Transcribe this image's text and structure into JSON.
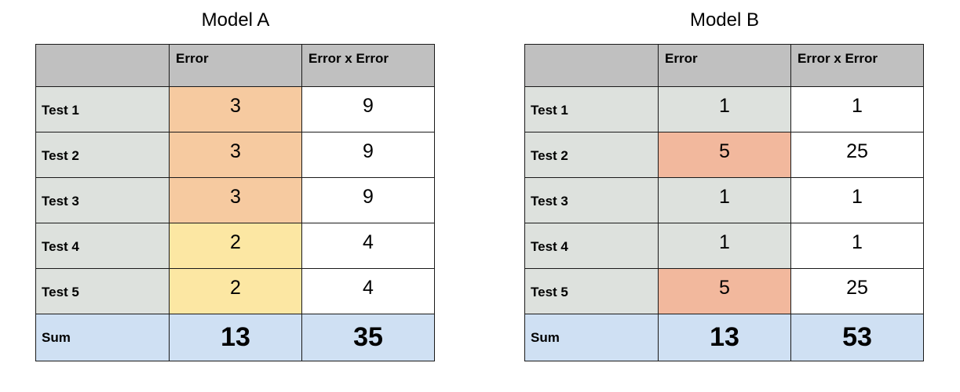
{
  "model_a": {
    "title": "Model A",
    "headers": [
      "",
      "Error",
      "Error x Error"
    ],
    "rows": [
      {
        "label": "Test 1",
        "error": "3",
        "squared": "9"
      },
      {
        "label": "Test 2",
        "error": "3",
        "squared": "9"
      },
      {
        "label": "Test 3",
        "error": "3",
        "squared": "9"
      },
      {
        "label": "Test 4",
        "error": "2",
        "squared": "4"
      },
      {
        "label": "Test 5",
        "error": "2",
        "squared": "4"
      }
    ],
    "sum": {
      "label": "Sum",
      "error": "13",
      "squared": "35"
    }
  },
  "model_b": {
    "title": "Model B",
    "headers": [
      "",
      "Error",
      "Error x Error"
    ],
    "rows": [
      {
        "label": "Test 1",
        "error": "1",
        "squared": "1"
      },
      {
        "label": "Test 2",
        "error": "5",
        "squared": "25"
      },
      {
        "label": "Test 3",
        "error": "1",
        "squared": "1"
      },
      {
        "label": "Test 4",
        "error": "1",
        "squared": "1"
      },
      {
        "label": "Test 5",
        "error": "5",
        "squared": "25"
      }
    ],
    "sum": {
      "label": "Sum",
      "error": "13",
      "squared": "53"
    }
  },
  "colors": {
    "header_bg": "#c0c0c0",
    "label_bg": "#dde1dd",
    "sum_bg": "#cfe0f3",
    "highlight_orange": "#f6caa0",
    "highlight_yellow": "#fce7a3",
    "highlight_salmon": "#f2b89d"
  }
}
